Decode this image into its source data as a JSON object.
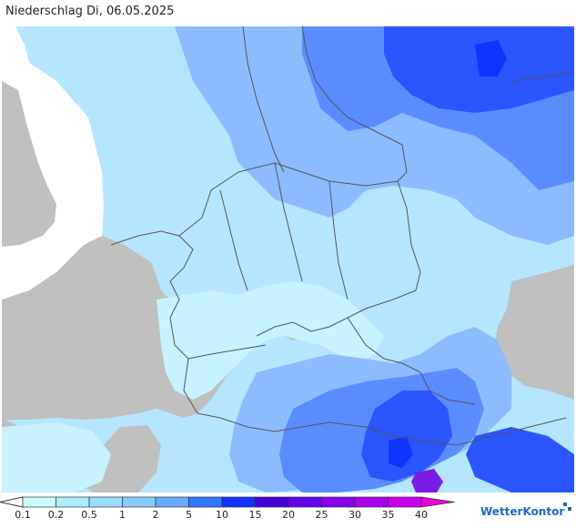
{
  "header": {
    "title": "Niederschlag Di, 06.05.2025"
  },
  "legend": {
    "ticks": [
      "0.1",
      "0.2",
      "0.5",
      "1",
      "2",
      "5",
      "10",
      "15",
      "20",
      "25",
      "30",
      "35",
      "40"
    ],
    "colors": [
      "#ccffff",
      "#aaeeff",
      "#99ddff",
      "#88ccff",
      "#66aaff",
      "#3377ff",
      "#1133ff",
      "#4400dd",
      "#6600ee",
      "#8800ee",
      "#aa00ee",
      "#cc00ee",
      "#ee00dd"
    ]
  },
  "brand": {
    "logo_text": "WetterKontor"
  },
  "palette": {
    "land_outside": "#c0c0c0",
    "sea": "#ffffff",
    "precip_light": "#c6f3ff",
    "precip_mid": "#a8d6ff",
    "precip_med": "#8cbcff",
    "precip_strong": "#5b8cff",
    "precip_heavy": "#2a55ff",
    "precip_extreme": "#7a1ce6",
    "borders": "#555555"
  }
}
